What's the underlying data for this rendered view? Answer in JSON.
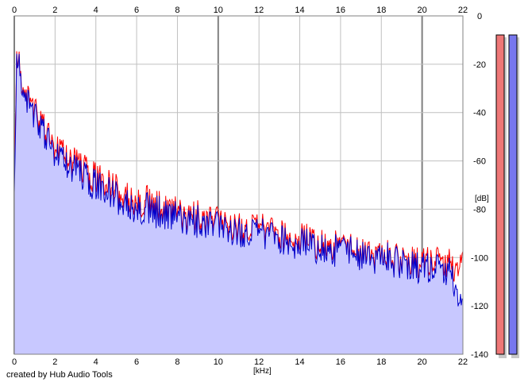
{
  "chart_data": {
    "type": "line",
    "xlabel": "[kHz]",
    "ylabel": "[dB]",
    "xlim": [
      0,
      22
    ],
    "ylim": [
      -140,
      0
    ],
    "x_ticks": [
      "0",
      "2",
      "4",
      "6",
      "8",
      "10",
      "12",
      "14",
      "16",
      "18",
      "20",
      "22"
    ],
    "y_ticks": [
      "0",
      "-20",
      "-40",
      "-60",
      "-80",
      "-100",
      "-120",
      "-140"
    ],
    "grid": true,
    "series": [
      {
        "color": "#ff0000",
        "fill": false,
        "x": [
          0.0,
          0.1,
          0.2,
          0.3,
          0.5,
          0.8,
          1.0,
          1.2,
          1.5,
          1.8,
          2.0,
          2.5,
          3.0,
          3.5,
          4.0,
          4.5,
          5.0,
          5.5,
          6.0,
          6.5,
          7.0,
          7.5,
          8.0,
          8.5,
          9.0,
          9.5,
          10.0,
          10.5,
          11.0,
          11.5,
          12.0,
          12.5,
          13.0,
          13.5,
          14.0,
          14.5,
          15.0,
          15.5,
          16.0,
          16.5,
          17.0,
          17.5,
          18.0,
          18.5,
          19.0,
          19.5,
          20.0,
          20.5,
          21.0,
          21.5,
          22.0
        ],
        "y": [
          -60,
          -22,
          -19,
          -24,
          -30,
          -36,
          -40,
          -44,
          -47,
          -50,
          -53,
          -57,
          -61,
          -64,
          -67,
          -70,
          -72,
          -74,
          -76,
          -77,
          -79,
          -80,
          -81,
          -82,
          -83,
          -84,
          -85,
          -86,
          -87,
          -88,
          -88,
          -89,
          -90,
          -91,
          -92,
          -93,
          -94,
          -95,
          -96,
          -97,
          -98,
          -98,
          -99,
          -100,
          -101,
          -101,
          -102,
          -102,
          -103,
          -103,
          -104
        ]
      },
      {
        "color": "#0000cc",
        "fill": true,
        "fill_color": "#c8c8ff",
        "x": [
          0.0,
          0.1,
          0.2,
          0.3,
          0.5,
          0.8,
          1.0,
          1.2,
          1.5,
          1.8,
          2.0,
          2.5,
          3.0,
          3.5,
          4.0,
          4.5,
          5.0,
          5.5,
          6.0,
          6.5,
          7.0,
          7.5,
          8.0,
          8.5,
          9.0,
          9.5,
          10.0,
          10.5,
          11.0,
          11.5,
          12.0,
          12.5,
          13.0,
          13.5,
          14.0,
          14.5,
          15.0,
          15.5,
          16.0,
          16.5,
          17.0,
          17.5,
          18.0,
          18.5,
          19.0,
          19.5,
          20.0,
          20.5,
          21.0,
          21.5,
          22.0
        ],
        "y": [
          -72,
          -23,
          -20,
          -25,
          -31,
          -38,
          -42,
          -46,
          -49,
          -52,
          -56,
          -60,
          -64,
          -67,
          -70,
          -73,
          -75,
          -77,
          -79,
          -80,
          -81,
          -82,
          -83,
          -84,
          -85,
          -86,
          -87,
          -88,
          -89,
          -90,
          -90,
          -91,
          -92,
          -93,
          -94,
          -95,
          -96,
          -97,
          -97,
          -98,
          -99,
          -100,
          -100,
          -101,
          -102,
          -103,
          -104,
          -105,
          -106,
          -107,
          -124
        ]
      }
    ],
    "level_meters": [
      {
        "color": "#ee7777"
      },
      {
        "color": "#7777ee"
      }
    ]
  },
  "footer": {
    "credit": "created by Hub Audio Tools"
  }
}
